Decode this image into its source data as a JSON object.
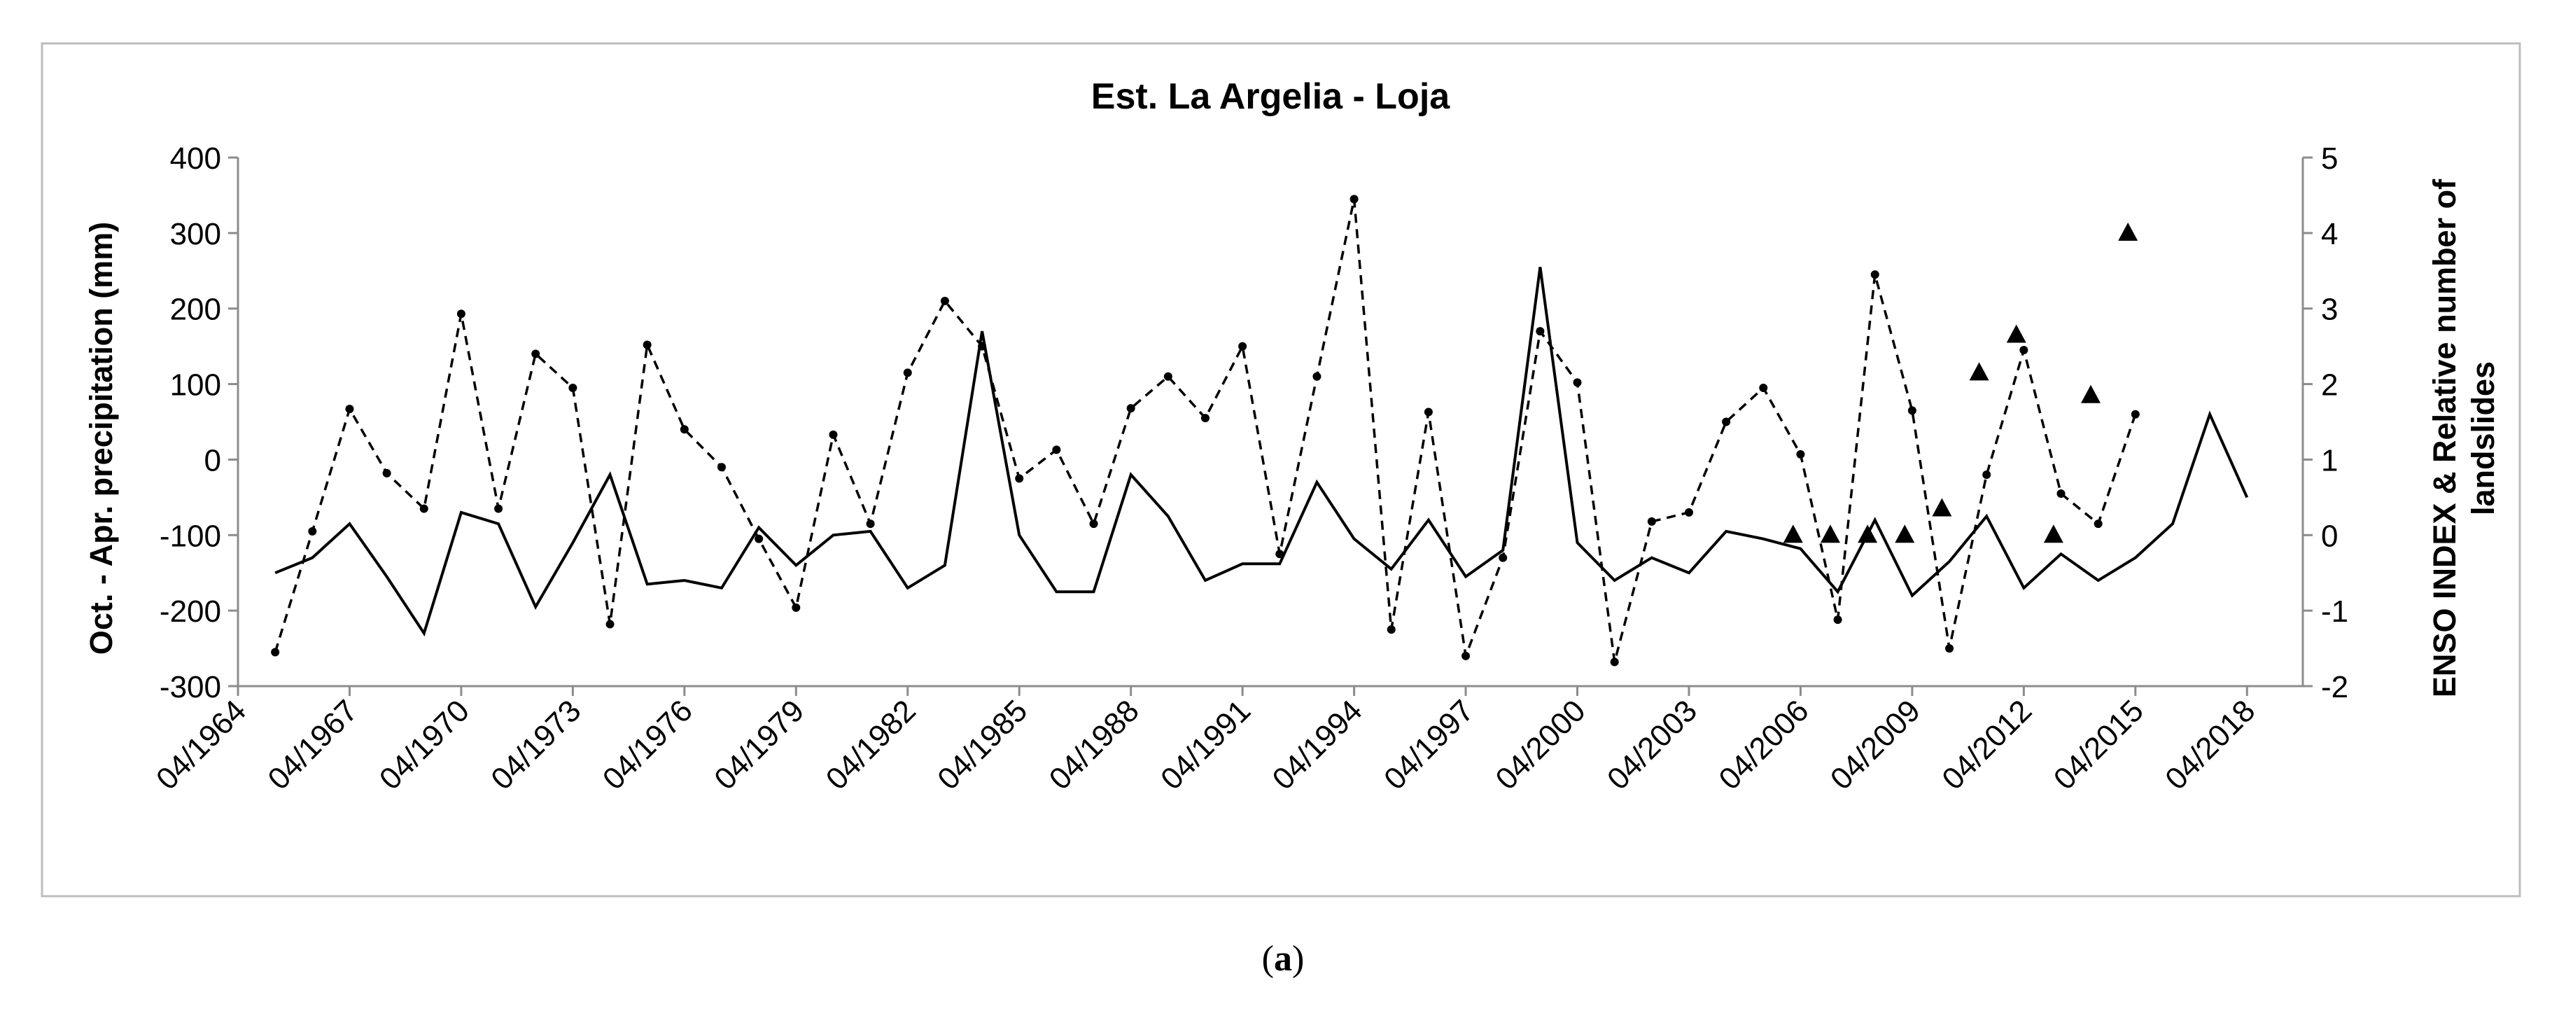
{
  "caption": {
    "prefix": "(",
    "letter": "a",
    "suffix": ")"
  },
  "chart_data": {
    "type": "line",
    "title": "Est. La Argelia - Loja",
    "ylabel": "Oct. - Apr. precipitation (mm)",
    "y2label_line1": "ENSO INDEX & Relative number of",
    "y2label_line2": "landslides",
    "xlim": [
      1964,
      2019.5
    ],
    "ylim": [
      -300,
      400
    ],
    "y2lim": [
      -2,
      5
    ],
    "x_ticks": [
      1964,
      1967,
      1970,
      1973,
      1976,
      1979,
      1982,
      1985,
      1988,
      1991,
      1994,
      1997,
      2000,
      2003,
      2006,
      2009,
      2012,
      2015,
      2018
    ],
    "x_tick_labels": [
      "04/1964",
      "04/1967",
      "04/1970",
      "04/1973",
      "04/1976",
      "04/1979",
      "04/1982",
      "04/1985",
      "04/1988",
      "04/1991",
      "04/1994",
      "04/1997",
      "04/2000",
      "04/2003",
      "04/2006",
      "04/2009",
      "04/2012",
      "04/2015",
      "04/2018"
    ],
    "y_ticks": [
      -300,
      -200,
      -100,
      0,
      100,
      200,
      300,
      400
    ],
    "y_tick_labels": [
      "-300",
      "-200",
      "-100",
      "0",
      "100",
      "200",
      "300",
      "400"
    ],
    "y2_ticks": [
      -2,
      -1,
      0,
      1,
      2,
      3,
      4,
      5
    ],
    "y2_tick_labels": [
      "-2",
      "-1",
      "0",
      "1",
      "2",
      "3",
      "4",
      "5"
    ],
    "series": [
      {
        "name": "Oct. - Apr. precipitation (mm)",
        "axis": "left",
        "style": "dashed-dots",
        "x": [
          1965,
          1966,
          1967,
          1968,
          1969,
          1970,
          1971,
          1972,
          1973,
          1974,
          1975,
          1976,
          1977,
          1978,
          1979,
          1980,
          1981,
          1982,
          1983,
          1984,
          1985,
          1986,
          1987,
          1988,
          1989,
          1990,
          1991,
          1992,
          1993,
          1994,
          1995,
          1996,
          1997,
          1998,
          1999,
          2000,
          2001,
          2002,
          2003,
          2004,
          2005,
          2006,
          2007,
          2008,
          2009,
          2010,
          2011,
          2012,
          2013,
          2014,
          2015
        ],
        "values": [
          -255,
          -95,
          67,
          -18,
          -65,
          193,
          -65,
          140,
          95,
          -218,
          152,
          40,
          -10,
          -105,
          -196,
          33,
          -85,
          115,
          210,
          150,
          -25,
          13,
          -85,
          68,
          110,
          55,
          150,
          -125,
          110,
          345,
          -225,
          63,
          -260,
          -130,
          170,
          102,
          -268,
          -82,
          -70,
          50,
          95,
          7,
          -212,
          245,
          65,
          -250,
          -20,
          145,
          -45,
          -85,
          60
        ]
      },
      {
        "name": "ENSO INDEX",
        "axis": "right",
        "style": "solid",
        "x": [
          1965,
          1966,
          1967,
          1968,
          1969,
          1970,
          1971,
          1972,
          1973,
          1974,
          1975,
          1976,
          1977,
          1978,
          1979,
          1980,
          1981,
          1982,
          1983,
          1984,
          1985,
          1986,
          1987,
          1988,
          1989,
          1990,
          1991,
          1992,
          1993,
          1994,
          1995,
          1996,
          1997,
          1998,
          1999,
          2000,
          2001,
          2002,
          2003,
          2004,
          2005,
          2006,
          2007,
          2008,
          2009,
          2010,
          2011,
          2012,
          2013,
          2014,
          2015,
          2016,
          2017,
          2018
        ],
        "values": [
          -0.5,
          -0.3,
          0.15,
          -0.55,
          -1.3,
          0.3,
          0.15,
          -0.95,
          -0.1,
          0.8,
          -0.65,
          -0.6,
          -0.7,
          0.1,
          -0.4,
          0.0,
          0.05,
          -0.7,
          -0.4,
          2.7,
          0.0,
          -0.75,
          -0.75,
          0.8,
          0.25,
          -0.6,
          -0.38,
          -0.38,
          0.7,
          -0.05,
          -0.45,
          0.2,
          -0.55,
          -0.2,
          3.55,
          -0.1,
          -0.6,
          -0.3,
          -0.5,
          0.05,
          -0.05,
          -0.18,
          -0.75,
          0.2,
          -0.8,
          -0.35,
          0.25,
          -0.7,
          -0.25,
          -0.6,
          -0.3,
          0.15,
          1.6,
          0.5
        ]
      },
      {
        "name": "Relative number of landslides",
        "axis": "right",
        "style": "triangles",
        "x": [
          2005.8,
          2006.8,
          2007.8,
          2008.8,
          2009.8,
          2010.8,
          2011.8,
          2012.8,
          2013.8,
          2014.8
        ],
        "values": [
          0,
          0,
          0,
          0,
          0.35,
          2.15,
          2.65,
          0,
          1.85,
          4
        ]
      }
    ]
  }
}
